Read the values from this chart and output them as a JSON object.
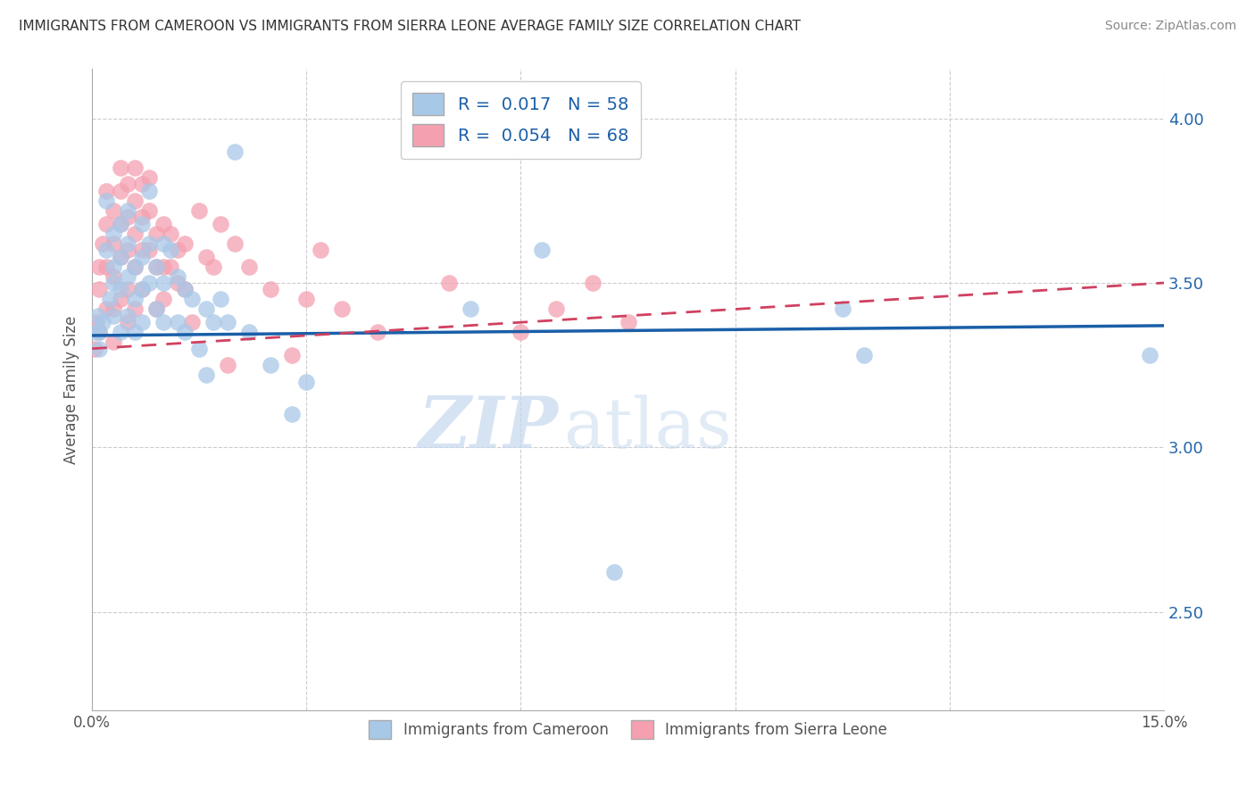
{
  "title": "IMMIGRANTS FROM CAMEROON VS IMMIGRANTS FROM SIERRA LEONE AVERAGE FAMILY SIZE CORRELATION CHART",
  "source": "Source: ZipAtlas.com",
  "xlabel": "",
  "ylabel": "Average Family Size",
  "xlim": [
    0.0,
    0.15
  ],
  "ylim": [
    2.2,
    4.15
  ],
  "yticks_right": [
    2.5,
    3.0,
    3.5,
    4.0
  ],
  "xticks": [
    0.0,
    0.03,
    0.06,
    0.09,
    0.12,
    0.15
  ],
  "xtick_labels": [
    "0.0%",
    "",
    "",
    "",
    "",
    "15.0%"
  ],
  "legend_r_blue": "0.017",
  "legend_n_blue": "58",
  "legend_r_pink": "0.054",
  "legend_n_pink": "68",
  "blue_color": "#a8c8e8",
  "pink_color": "#f4a0b0",
  "blue_line_color": "#1a5fa8",
  "pink_line_color": "#d04060",
  "watermark_zip": "ZIP",
  "watermark_atlas": "atlas",
  "legend_label_blue": "Immigrants from Cameroon",
  "legend_label_pink": "Immigrants from Sierra Leone",
  "cameroon_x": [
    0.0005,
    0.0008,
    0.001,
    0.001,
    0.0015,
    0.002,
    0.002,
    0.0025,
    0.003,
    0.003,
    0.003,
    0.003,
    0.004,
    0.004,
    0.004,
    0.004,
    0.005,
    0.005,
    0.005,
    0.005,
    0.006,
    0.006,
    0.006,
    0.007,
    0.007,
    0.007,
    0.007,
    0.008,
    0.008,
    0.008,
    0.009,
    0.009,
    0.01,
    0.01,
    0.01,
    0.011,
    0.012,
    0.012,
    0.013,
    0.013,
    0.014,
    0.015,
    0.016,
    0.016,
    0.017,
    0.018,
    0.019,
    0.02,
    0.022,
    0.025,
    0.028,
    0.03,
    0.053,
    0.063,
    0.073,
    0.105,
    0.108,
    0.148
  ],
  "cameroon_y": [
    3.35,
    3.4,
    3.35,
    3.3,
    3.38,
    3.75,
    3.6,
    3.45,
    3.65,
    3.55,
    3.5,
    3.4,
    3.68,
    3.58,
    3.48,
    3.35,
    3.72,
    3.62,
    3.52,
    3.4,
    3.55,
    3.45,
    3.35,
    3.68,
    3.58,
    3.48,
    3.38,
    3.78,
    3.62,
    3.5,
    3.55,
    3.42,
    3.62,
    3.5,
    3.38,
    3.6,
    3.52,
    3.38,
    3.48,
    3.35,
    3.45,
    3.3,
    3.42,
    3.22,
    3.38,
    3.45,
    3.38,
    3.9,
    3.35,
    3.25,
    3.1,
    3.2,
    3.42,
    3.6,
    2.62,
    3.42,
    3.28,
    3.28
  ],
  "sierraleone_x": [
    0.0004,
    0.0006,
    0.001,
    0.001,
    0.001,
    0.0015,
    0.002,
    0.002,
    0.002,
    0.002,
    0.003,
    0.003,
    0.003,
    0.003,
    0.003,
    0.004,
    0.004,
    0.004,
    0.004,
    0.004,
    0.005,
    0.005,
    0.005,
    0.005,
    0.005,
    0.006,
    0.006,
    0.006,
    0.006,
    0.006,
    0.007,
    0.007,
    0.007,
    0.007,
    0.008,
    0.008,
    0.008,
    0.009,
    0.009,
    0.009,
    0.01,
    0.01,
    0.01,
    0.011,
    0.011,
    0.012,
    0.012,
    0.013,
    0.013,
    0.014,
    0.015,
    0.016,
    0.017,
    0.018,
    0.019,
    0.02,
    0.022,
    0.025,
    0.028,
    0.03,
    0.032,
    0.035,
    0.04,
    0.05,
    0.06,
    0.065,
    0.07,
    0.075
  ],
  "sierraleone_y": [
    3.3,
    3.38,
    3.55,
    3.48,
    3.35,
    3.62,
    3.78,
    3.68,
    3.55,
    3.42,
    3.72,
    3.62,
    3.52,
    3.42,
    3.32,
    3.85,
    3.78,
    3.68,
    3.58,
    3.45,
    3.8,
    3.7,
    3.6,
    3.48,
    3.38,
    3.85,
    3.75,
    3.65,
    3.55,
    3.42,
    3.8,
    3.7,
    3.6,
    3.48,
    3.82,
    3.72,
    3.6,
    3.65,
    3.55,
    3.42,
    3.68,
    3.55,
    3.45,
    3.65,
    3.55,
    3.6,
    3.5,
    3.62,
    3.48,
    3.38,
    3.72,
    3.58,
    3.55,
    3.68,
    3.25,
    3.62,
    3.55,
    3.48,
    3.28,
    3.45,
    3.6,
    3.42,
    3.35,
    3.5,
    3.35,
    3.42,
    3.5,
    3.38
  ]
}
